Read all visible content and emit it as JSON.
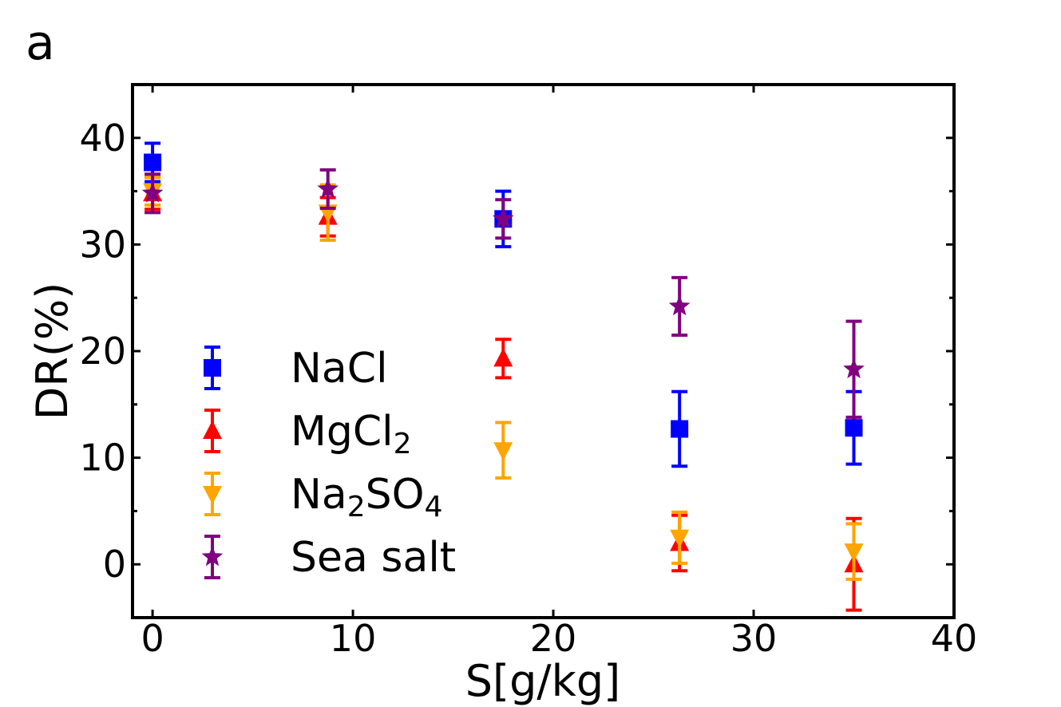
{
  "panel_label": "a",
  "chart_data": {
    "type": "scatter",
    "xlabel": "S[g/kg]",
    "ylabel": "DR(%)",
    "xlim": [
      -1,
      40
    ],
    "ylim": [
      -5,
      45
    ],
    "xticks": [
      0,
      10,
      20,
      30,
      40
    ],
    "yticks": [
      0,
      10,
      20,
      30,
      40
    ],
    "xtick_labels": [
      "0",
      "10",
      "20",
      "30",
      "40"
    ],
    "ytick_labels": [
      "0",
      "10",
      "20",
      "30",
      "40"
    ],
    "legend_position": "left-center",
    "series": [
      {
        "name": "NaCl",
        "name_main": "NaCl",
        "name_sub": "",
        "name_tail": "",
        "name_sub2": "",
        "color": "#0000ff",
        "marker": "square",
        "x": [
          0,
          17.5,
          26.3,
          35
        ],
        "y": [
          37.7,
          32.4,
          12.7,
          12.8
        ],
        "err": [
          1.8,
          2.6,
          3.5,
          3.4
        ]
      },
      {
        "name": "MgCl2",
        "name_main": "MgCl",
        "name_sub": "2",
        "name_tail": "",
        "name_sub2": "",
        "color": "#ff0000",
        "marker": "triangle-up",
        "x": [
          0,
          8.75,
          17.5,
          26.3,
          35
        ],
        "y": [
          34.8,
          32.6,
          19.3,
          2.0,
          0
        ],
        "err": [
          1.5,
          1.8,
          1.8,
          2.6,
          4.3
        ]
      },
      {
        "name": "Na2SO4",
        "name_main": "Na",
        "name_sub": "2",
        "name_tail": "SO",
        "name_sub2": "4",
        "color": "#ffa500",
        "marker": "triangle-down",
        "x": [
          0,
          8.75,
          17.5,
          26.3,
          35
        ],
        "y": [
          35.0,
          33.0,
          10.7,
          2.5,
          1.2
        ],
        "err": [
          1.3,
          2.6,
          2.6,
          2.4,
          2.6
        ]
      },
      {
        "name": "Sea salt",
        "name_main": "Sea salt",
        "name_sub": "",
        "name_tail": "",
        "name_sub2": "",
        "color": "#800080",
        "marker": "star",
        "x": [
          0,
          8.75,
          17.5,
          26.3,
          35
        ],
        "y": [
          34.8,
          35.2,
          32.4,
          24.2,
          18.3
        ],
        "err": [
          1.8,
          1.8,
          1.8,
          2.7,
          4.5
        ]
      }
    ]
  }
}
